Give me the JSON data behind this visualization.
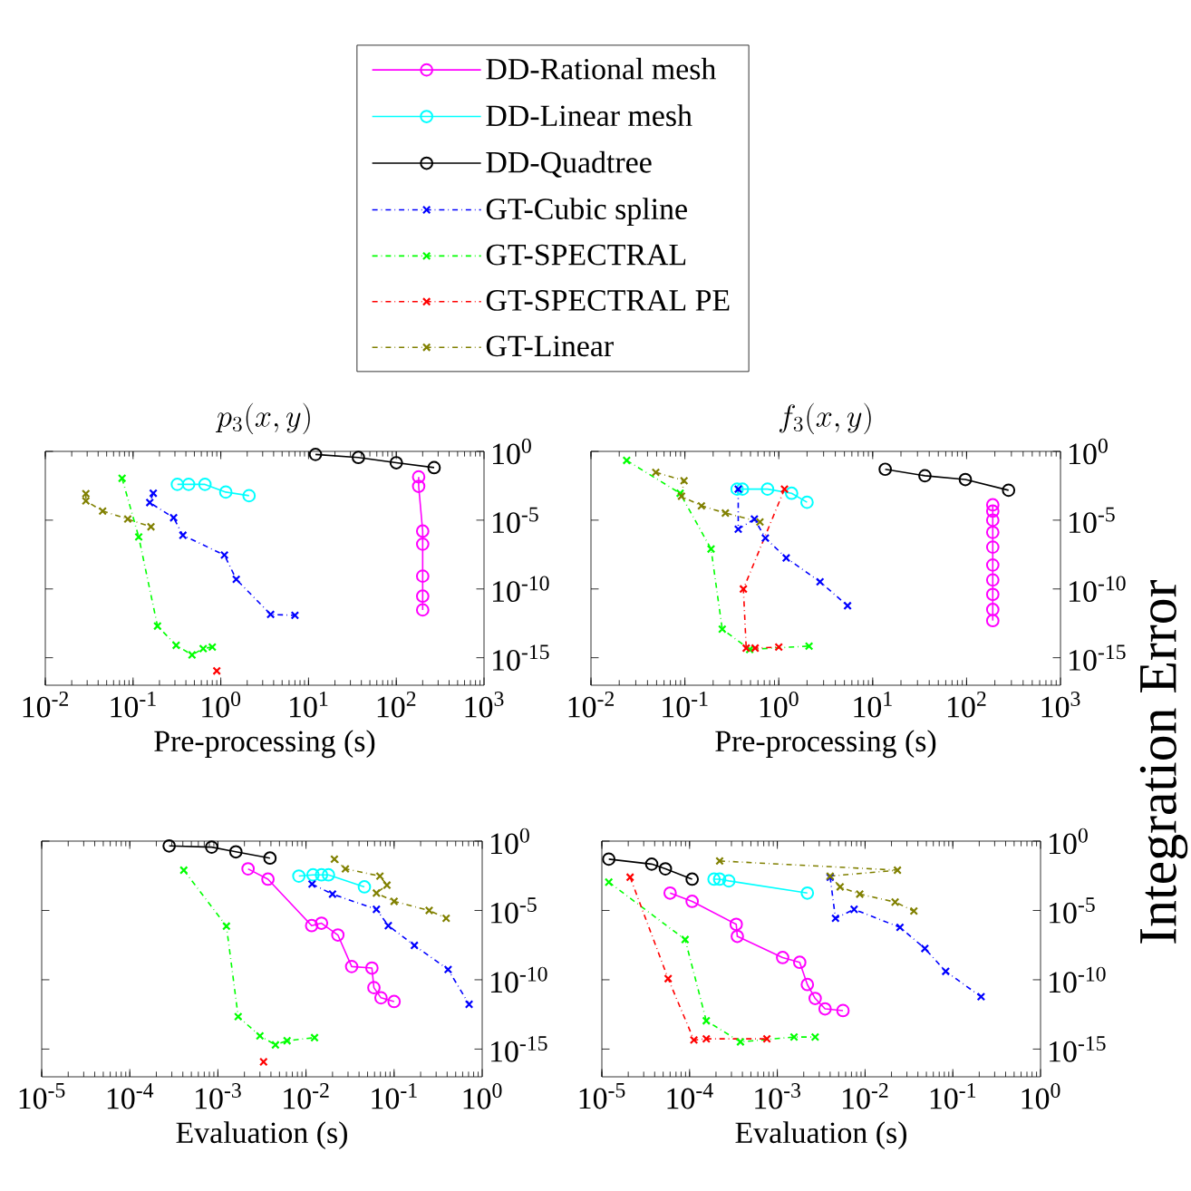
{
  "chart_data": [
    {
      "type": "line",
      "title": "p_3(x,y)",
      "xlabel": "Pre-processing (s)",
      "log": "xy",
      "legend": "top",
      "xlim": [
        0.01,
        1000
      ],
      "ylim": [
        1e-17,
        1
      ],
      "xticks": [
        {
          "value": 0.01,
          "label": "10$^{-2}$"
        },
        {
          "value": 0.1,
          "label": "10$^{-1}$"
        },
        {
          "value": 1,
          "label": "10$^{0}$"
        },
        {
          "value": 10,
          "label": "10$^{1}$"
        },
        {
          "value": 100,
          "label": "10$^{2}$"
        },
        {
          "value": 1000,
          "label": "10$^{3}$"
        }
      ],
      "yticks": [
        {
          "value": 1e-15,
          "label": "10$^{-15}$"
        },
        {
          "value": 1e-10,
          "label": "10$^{-10}$"
        },
        {
          "value": 1e-05,
          "label": "10$^{-5}$"
        },
        {
          "value": 1,
          "label": "10$^{0}$"
        }
      ],
      "series": [
        {
          "name": "DD-Rational mesh",
          "color": "#ff00ff",
          "marker": "circle",
          "line_style": "solid",
          "x": [
            180,
            180,
            200,
            200,
            200,
            200,
            200
          ],
          "values": [
            0.014,
            0.0029,
            1.6e-06,
            1.8e-07,
            8.5e-10,
            3e-11,
            3e-12
          ]
        },
        {
          "name": "DD-Linear mesh",
          "color": "#00ffff",
          "marker": "circle",
          "line_style": "solid",
          "x": [
            0.32,
            0.43,
            0.66,
            1.14,
            2.1
          ],
          "values": [
            0.004,
            0.004,
            0.004,
            0.0011,
            0.0006
          ]
        },
        {
          "name": "DD-Quadtree",
          "color": "#000000",
          "marker": "circle",
          "line_style": "solid",
          "x": [
            12,
            37,
            100,
            270
          ],
          "values": [
            0.6,
            0.36,
            0.15,
            0.066
          ]
        },
        {
          "name": "GT-Cubic spline",
          "color": "#0000ff",
          "marker": "cross",
          "line_style": "dashdot",
          "x": [
            0.17,
            0.155,
            0.29,
            0.37,
            1.1,
            1.5,
            3.7,
            7.0
          ],
          "values": [
            0.0009,
            0.00019,
            1.5e-05,
            8e-07,
            2.9e-08,
            5e-10,
            1.4e-12,
            1.2e-12
          ]
        },
        {
          "name": "GT-SPECTRAL",
          "color": "#00ff00",
          "marker": "cross",
          "line_style": "dashdot",
          "x": [
            0.075,
            0.116,
            0.19,
            0.31,
            0.47,
            0.63,
            0.8
          ],
          "values": [
            0.011,
            6e-07,
            2e-13,
            8e-15,
            1.6e-15,
            4.6e-15,
            6e-15
          ]
        },
        {
          "name": "GT-SPECTRAL PE",
          "color": "#ff0000",
          "marker": "cross",
          "line_style": "dashdot",
          "x": [
            0.9
          ],
          "values": [
            1.1e-16
          ]
        },
        {
          "name": "GT-Linear",
          "color": "#808000",
          "marker": "cross",
          "line_style": "dashdot",
          "x": [
            0.029,
            0.029,
            0.045,
            0.087,
            0.16
          ],
          "values": [
            0.00085,
            0.00025,
            4.6e-05,
            1.2e-05,
            3.3e-06
          ]
        }
      ]
    },
    {
      "type": "line",
      "title": "f_3(x,y)",
      "xlabel": "Pre-processing (s)",
      "ylabel": "Integration Error",
      "log": "xy",
      "xlim": [
        0.01,
        1000
      ],
      "ylim": [
        1e-17,
        1
      ],
      "xticks": [
        {
          "value": 0.01,
          "label": "10$^{-2}$"
        },
        {
          "value": 0.1,
          "label": "10$^{-1}$"
        },
        {
          "value": 1,
          "label": "10$^{0}$"
        },
        {
          "value": 10,
          "label": "10$^{1}$"
        },
        {
          "value": 100,
          "label": "10$^{2}$"
        },
        {
          "value": 1000,
          "label": "10$^{3}$"
        }
      ],
      "yticks": [
        {
          "value": 1e-15,
          "label": "10$^{-15}$"
        },
        {
          "value": 1e-10,
          "label": "10$^{-10}$"
        },
        {
          "value": 1e-05,
          "label": "10$^{-5}$"
        },
        {
          "value": 1,
          "label": "10$^{0}$"
        }
      ],
      "series": [
        {
          "color": "#ff00ff",
          "marker": "circle",
          "line_style": "solid",
          "x": [
            190,
            190,
            190,
            190,
            190,
            190,
            190,
            190,
            190,
            190
          ],
          "values": [
            0.00013,
            4.5e-05,
            1e-05,
            1.3e-06,
            1.1e-07,
            5.5e-09,
            4.5e-10,
            4e-11,
            3.2e-12,
            5e-13
          ]
        },
        {
          "color": "#00ffff",
          "marker": "circle",
          "line_style": "solid",
          "x": [
            0.36,
            0.41,
            0.76,
            1.37,
            2.0
          ],
          "values": [
            0.0018,
            0.0018,
            0.0018,
            0.0009,
            0.0002
          ]
        },
        {
          "color": "#000000",
          "marker": "circle",
          "line_style": "solid",
          "x": [
            13.6,
            36,
            97,
            280
          ],
          "values": [
            0.05,
            0.017,
            0.009,
            0.0015
          ]
        },
        {
          "color": "#0000ff",
          "marker": "cross",
          "line_style": "dashdot",
          "x": [
            0.37,
            0.37,
            0.55,
            0.72,
            1.2,
            2.75,
            5.4
          ],
          "values": [
            0.0018,
            2.2e-06,
            1.2e-05,
            5e-07,
            1.8e-08,
            3.3e-10,
            6e-12
          ]
        },
        {
          "color": "#00ff00",
          "marker": "cross",
          "line_style": "dashdot",
          "x": [
            0.024,
            0.089,
            0.19,
            0.25,
            0.49,
            2.1
          ],
          "values": [
            0.22,
            0.0009,
            8e-08,
            1.2e-13,
            4e-15,
            7e-15
          ]
        },
        {
          "color": "#ff0000",
          "marker": "cross",
          "line_style": "dashdot",
          "x": [
            1.15,
            0.42,
            0.45,
            0.56,
            1.0
          ],
          "values": [
            0.0018,
            1e-10,
            5e-15,
            5e-15,
            6e-15
          ]
        },
        {
          "color": "#808000",
          "marker": "cross",
          "line_style": "dashdot",
          "x": [
            0.049,
            0.098,
            0.092,
            0.15,
            0.27,
            0.63
          ],
          "values": [
            0.03,
            0.0074,
            0.00055,
            0.00011,
            3.3e-05,
            7.4e-06
          ]
        }
      ]
    },
    {
      "type": "line",
      "xlabel": "Evaluation (s)",
      "log": "xy",
      "xlim": [
        1e-05,
        1
      ],
      "ylim": [
        1e-17,
        1
      ],
      "xticks": [
        {
          "value": 1e-05,
          "label": "10$^{-5}$"
        },
        {
          "value": 0.0001,
          "label": "10$^{-4}$"
        },
        {
          "value": 0.001,
          "label": "10$^{-3}$"
        },
        {
          "value": 0.01,
          "label": "10$^{-2}$"
        },
        {
          "value": 0.1,
          "label": "10$^{-1}$"
        },
        {
          "value": 1,
          "label": "10$^{0}$"
        }
      ],
      "yticks": [
        {
          "value": 1e-15,
          "label": "10$^{-15}$"
        },
        {
          "value": 1e-10,
          "label": "10$^{-10}$"
        },
        {
          "value": 1e-05,
          "label": "10$^{-5}$"
        },
        {
          "value": 1,
          "label": "10$^{0}$"
        }
      ],
      "series": [
        {
          "color": "#ff00ff",
          "marker": "circle",
          "line_style": "solid",
          "x": [
            0.0022,
            0.0037,
            0.0116,
            0.015,
            0.023,
            0.033,
            0.056,
            0.059,
            0.071,
            0.1
          ],
          "values": [
            0.01,
            0.0018,
            8e-07,
            1.2e-06,
            1.7e-07,
            9e-10,
            7e-10,
            2.7e-11,
            5e-12,
            2.7e-12
          ]
        },
        {
          "color": "#00ffff",
          "marker": "circle",
          "line_style": "solid",
          "x": [
            0.0083,
            0.012,
            0.015,
            0.018,
            0.046
          ],
          "values": [
            0.003,
            0.0037,
            0.0037,
            0.0037,
            0.0005
          ]
        },
        {
          "color": "#000000",
          "marker": "circle",
          "line_style": "solid",
          "x": [
            0.00028,
            0.00085,
            0.0016,
            0.0039
          ],
          "values": [
            0.45,
            0.37,
            0.17,
            0.06
          ]
        },
        {
          "color": "#0000ff",
          "marker": "cross",
          "line_style": "dashdot",
          "x": [
            0.0117,
            0.02,
            0.063,
            0.086,
            0.17,
            0.41,
            0.71
          ],
          "values": [
            0.0008,
            0.00015,
            1.2e-05,
            8e-07,
            3e-08,
            5.5e-10,
            1.7e-12
          ]
        },
        {
          "color": "#00ff00",
          "marker": "cross",
          "line_style": "dashdot",
          "x": [
            0.00041,
            0.00125,
            0.0017,
            0.003,
            0.0045,
            0.0061,
            0.0125
          ],
          "values": [
            0.008,
            7.4e-07,
            2.2e-13,
            9e-15,
            2e-15,
            4e-15,
            6.7e-15
          ]
        },
        {
          "color": "#ff0000",
          "marker": "cross",
          "line_style": "dashdot",
          "x": [
            0.0033
          ],
          "values": [
            1.2e-16
          ]
        },
        {
          "color": "#808000",
          "marker": "cross",
          "line_style": "dashdot",
          "x": [
            0.021,
            0.028,
            0.069,
            0.083,
            0.063,
            0.1,
            0.25,
            0.39
          ],
          "values": [
            0.05,
            0.01,
            0.003,
            0.00067,
            0.00018,
            4.5e-05,
            1e-05,
            2.7e-06
          ]
        }
      ]
    },
    {
      "type": "line",
      "xlabel": "Evaluation (s)",
      "log": "xy",
      "xlim": [
        1e-05,
        1
      ],
      "ylim": [
        1e-17,
        1
      ],
      "xticks": [
        {
          "value": 1e-05,
          "label": "10$^{-5}$"
        },
        {
          "value": 0.0001,
          "label": "10$^{-4}$"
        },
        {
          "value": 0.001,
          "label": "10$^{-3}$"
        },
        {
          "value": 0.01,
          "label": "10$^{-2}$"
        },
        {
          "value": 0.1,
          "label": "10$^{-1}$"
        },
        {
          "value": 1,
          "label": "10$^{0}$"
        }
      ],
      "yticks": [
        {
          "value": 1e-15,
          "label": "10$^{-15}$"
        },
        {
          "value": 1e-10,
          "label": "10$^{-10}$"
        },
        {
          "value": 1e-05,
          "label": "10$^{-5}$"
        },
        {
          "value": 1,
          "label": "10$^{0}$"
        }
      ],
      "series": [
        {
          "color": "#ff00ff",
          "marker": "circle",
          "line_style": "solid",
          "x": [
            6e-05,
            0.000107,
            0.00034,
            0.00035,
            0.00115,
            0.0018,
            0.0022,
            0.0027,
            0.0035,
            0.0056
          ],
          "values": [
            0.00018,
            4.5e-05,
            1e-06,
            1.35e-07,
            4e-09,
            1.8e-09,
            4.5e-11,
            4.5e-12,
            8e-13,
            6e-13
          ]
        },
        {
          "color": "#00ffff",
          "marker": "circle",
          "line_style": "solid",
          "x": [
            0.00019,
            0.00022,
            0.00028,
            0.0022
          ],
          "values": [
            0.0018,
            0.0018,
            0.00135,
            0.00018
          ]
        },
        {
          "color": "#000000",
          "marker": "circle",
          "line_style": "solid",
          "x": [
            1.2e-05,
            3.7e-05,
            5.3e-05,
            0.000107
          ],
          "values": [
            0.05,
            0.022,
            0.01,
            0.0018
          ]
        },
        {
          "color": "#0000ff",
          "marker": "cross",
          "line_style": "dashdot",
          "x": [
            0.004,
            0.0046,
            0.0075,
            0.025,
            0.048,
            0.083,
            0.21
          ],
          "values": [
            0.0025,
            2.7e-06,
            1.2e-05,
            6e-07,
            1.8e-08,
            4e-10,
            6e-12
          ]
        },
        {
          "color": "#00ff00",
          "marker": "cross",
          "line_style": "dashdot",
          "x": [
            1.2e-05,
            8.9e-05,
            0.000155,
            0.00038,
            0.00155,
            0.0027
          ],
          "values": [
            0.0011,
            8e-08,
            1.1e-13,
            3.3e-15,
            7.4e-15,
            7.4e-15
          ]
        },
        {
          "color": "#ff0000",
          "marker": "cross",
          "line_style": "dashdot",
          "x": [
            2.1e-05,
            5.7e-05,
            0.000112,
            0.000155,
            0.00076
          ],
          "values": [
            0.0025,
            1.2e-10,
            4.5e-15,
            5.5e-15,
            5.5e-15
          ]
        },
        {
          "color": "#808000",
          "marker": "cross",
          "line_style": "dashdot",
          "x": [
            0.00022,
            0.0234,
            0.004,
            0.0052,
            0.0087,
            0.022,
            0.036
          ],
          "values": [
            0.037,
            0.008,
            0.003,
            0.0005,
            0.00015,
            4e-05,
            9e-06
          ]
        }
      ]
    }
  ]
}
